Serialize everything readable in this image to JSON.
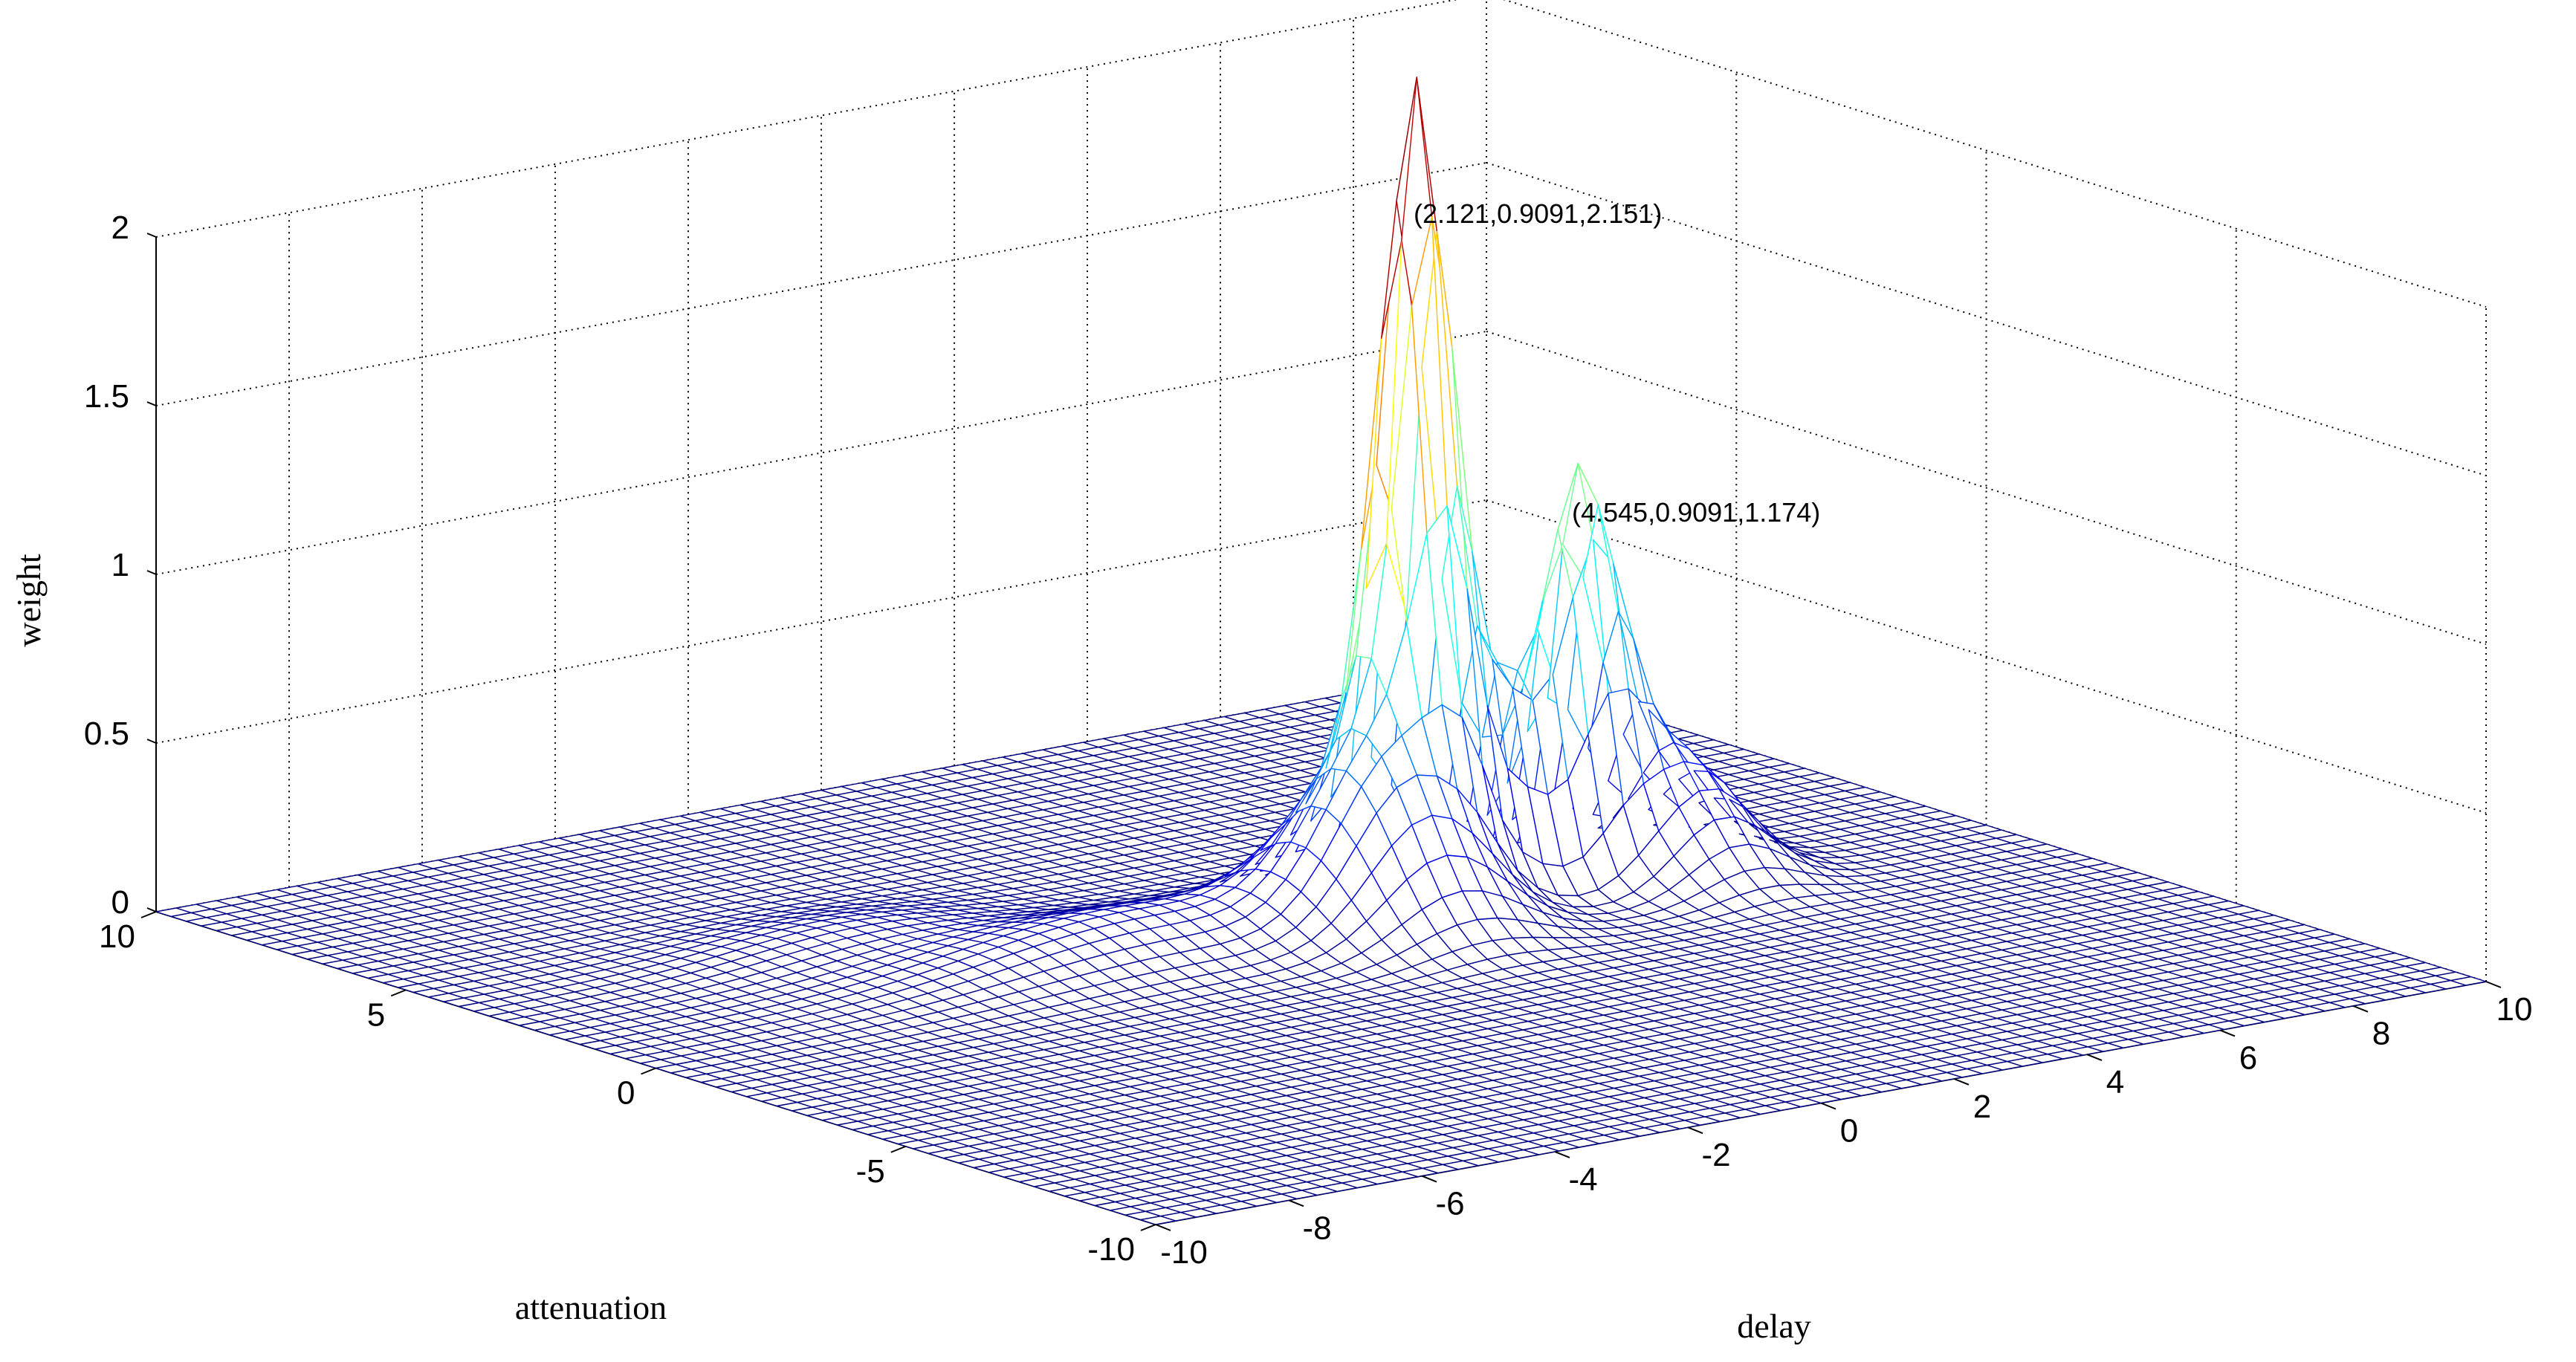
{
  "chart_data": {
    "type": "surface",
    "title": "",
    "xlabel": "delay",
    "ylabel": "attenuation",
    "zlabel": "weight",
    "xlim": [
      -10,
      10
    ],
    "ylim": [
      -10,
      10
    ],
    "zlim": [
      0,
      2
    ],
    "grid": true,
    "colormap": "jet",
    "x_ticks": [
      "-10",
      "-8",
      "-6",
      "-4",
      "-2",
      "0",
      "2",
      "4",
      "6",
      "8",
      "10"
    ],
    "y_ticks": [
      "-10",
      "-5",
      "0",
      "5",
      "10"
    ],
    "z_ticks": [
      "0",
      "0.5",
      "1",
      "1.5",
      "2"
    ],
    "annotations": [
      {
        "text": "(2.121,0.9091,2.151)",
        "x": 2.121,
        "y": 0.9091,
        "z": 2.151
      },
      {
        "text": "(4.545,0.9091,1.174)",
        "x": 4.545,
        "y": 0.9091,
        "z": 1.174
      }
    ],
    "peaks": [
      {
        "x": 2.121,
        "y": 0.9091,
        "z": 2.151
      },
      {
        "x": 4.545,
        "y": 0.9091,
        "z": 1.174
      }
    ],
    "grid_points": 67
  },
  "colors": {
    "mesh_low": "#00008f",
    "background": "#ffffff",
    "axis": "#000000"
  }
}
